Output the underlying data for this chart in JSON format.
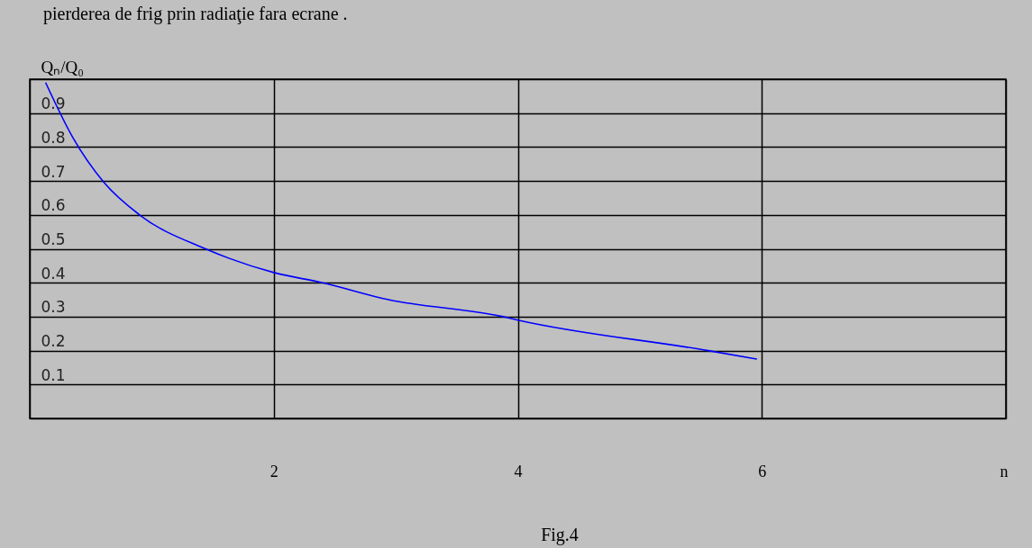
{
  "chart_data": {
    "type": "line",
    "title": "pierderea de frig prin radiaţie fara ecrane .",
    "xlabel": "n",
    "ylabel": "Qₙ/Q₀",
    "annotations": [
      "Fig.4"
    ],
    "x": [
      0.13,
      0.35,
      0.61,
      0.9,
      1.44,
      2.0,
      2.4,
      2.94,
      3.88,
      4.0,
      5.56,
      5.96
    ],
    "series": [
      {
        "color": "#0000ff",
        "values": [
          0.99,
          0.83,
          0.695,
          0.6,
          0.5,
          0.43,
          0.4,
          0.35,
          0.3,
          0.29,
          0.2,
          0.175
        ]
      }
    ],
    "xlim": [
      0,
      8
    ],
    "xticks": [
      {
        "value": 0,
        "label": null
      },
      2,
      4,
      6,
      {
        "value": 8,
        "label": null
      }
    ],
    "ylim": [
      0,
      1
    ],
    "yticks": [
      {
        "value": 0,
        "label": null
      },
      0.1,
      0.2,
      0.3,
      0.4,
      0.5,
      0.6,
      0.7,
      0.8,
      0.9,
      {
        "value": 1,
        "label": null
      }
    ],
    "grid": true,
    "marker": "none",
    "line_style": "solid"
  }
}
